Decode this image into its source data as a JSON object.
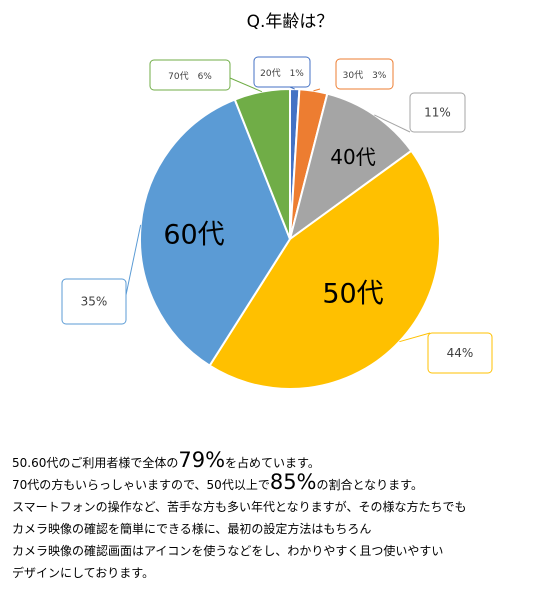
{
  "chart_data": {
    "type": "pie",
    "title": "Q.年齢は？",
    "start_angle_deg": 0,
    "direction": "clockwise",
    "slices": [
      {
        "category": "20代",
        "value": 1,
        "label": "1%",
        "callout": "20代 1%",
        "inner_label": "",
        "color": "#4472C4"
      },
      {
        "category": "30代",
        "value": 3,
        "label": "3%",
        "callout": "30代 3%",
        "inner_label": "",
        "color": "#ED7D31"
      },
      {
        "category": "40代",
        "value": 11,
        "label": "11%",
        "callout": "11%",
        "inner_label": "40代",
        "color": "#A5A5A5"
      },
      {
        "category": "50代",
        "value": 44,
        "label": "44%",
        "callout": "44%",
        "inner_label": "50代",
        "color": "#FFC000"
      },
      {
        "category": "60代",
        "value": 35,
        "label": "35%",
        "callout": "35%",
        "inner_label": "60代",
        "color": "#5B9BD5"
      },
      {
        "category": "70代",
        "value": 6,
        "label": "6%",
        "callout": "70代 6%",
        "inner_label": "",
        "color": "#70AD47"
      }
    ]
  },
  "caption": {
    "line1_a": "50.60代のご利用者様で全体の",
    "line1_big": "79%",
    "line1_b": "を占めています。",
    "line2_a": "70代の方もいらっしゃいますので、50代以上で",
    "line2_big": "85%",
    "line2_b": "の割合となります。",
    "line3": "スマートフォンの操作など、苦手な方も多い年代となりますが、その様な方たちでも",
    "line4": "カメラ映像の確認を簡単にできる様に、最初の設定方法はもちろん",
    "line5": "カメラ映像の確認画面はアイコンを使うなどをし、わかりやすく且つ使いやすい",
    "line6": "デザインにしております。"
  }
}
